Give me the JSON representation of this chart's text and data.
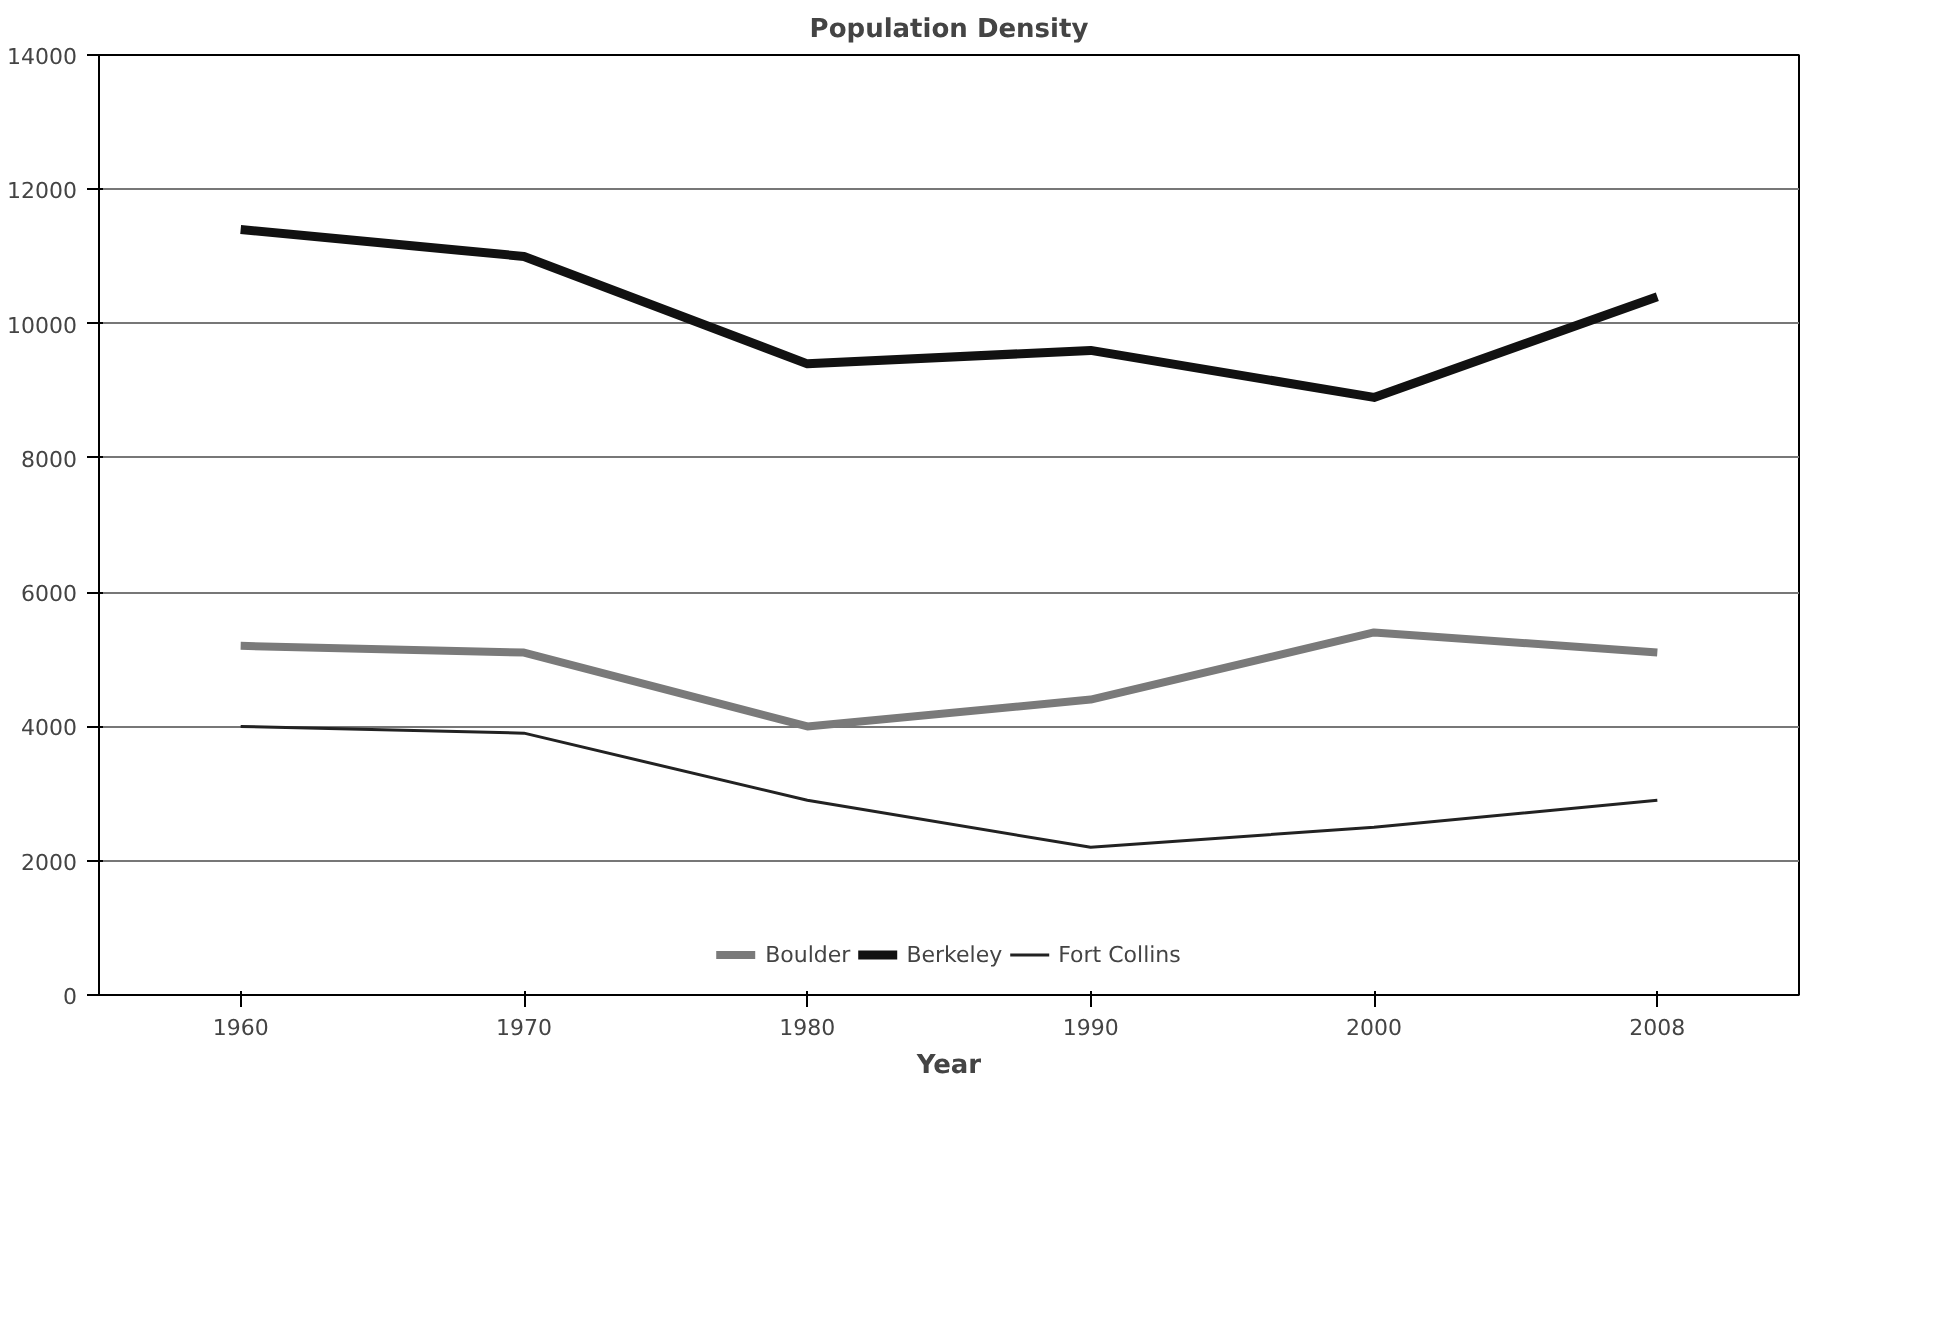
{
  "chart_data": {
    "type": "line",
    "title": "Population Density",
    "xlabel": "Year",
    "categories": [
      "1960",
      "1970",
      "1980",
      "1990",
      "2000",
      "2008"
    ],
    "series": [
      {
        "name": "Boulder",
        "color": "#7a7a7a",
        "values": [
          5200,
          5100,
          4000,
          4400,
          5400,
          5100
        ]
      },
      {
        "name": "Berkeley",
        "color": "#111111",
        "values": [
          11400,
          11000,
          9400,
          9600,
          8900,
          10400
        ]
      },
      {
        "name": "Fort Collins",
        "color": "#222222",
        "values": [
          4000,
          3900,
          2900,
          2200,
          2500,
          2900
        ]
      }
    ],
    "ylim": [
      0,
      14000
    ],
    "yticks": [
      0,
      2000,
      4000,
      6000,
      8000,
      10000,
      12000,
      14000
    ],
    "grid": "y",
    "legend": "bottom",
    "marker": "none",
    "line_style": "solid"
  }
}
